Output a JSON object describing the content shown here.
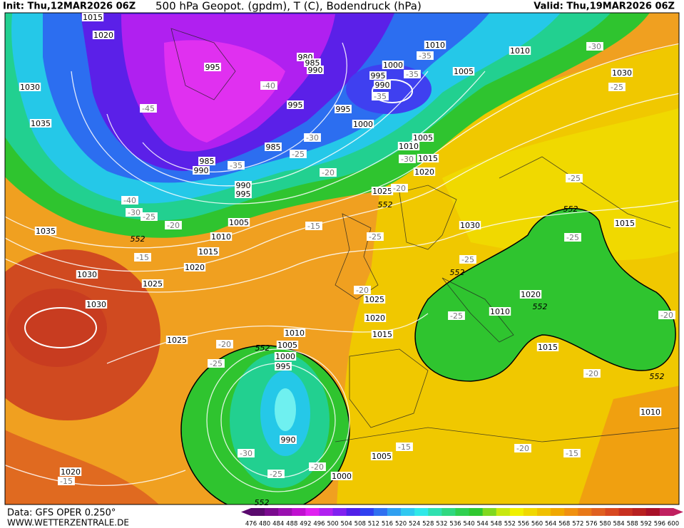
{
  "header": {
    "init": "Init: Thu,12MAR2026 06Z",
    "title": "500 hPa Geopot. (gpdm), T (C), Bodendruck (hPa)",
    "valid": "Valid: Thu,19MAR2026 06Z"
  },
  "footer": {
    "source": "Data: GFS OPER 0.250°",
    "website": "WWW.WETTERZENTRALE.DE"
  },
  "colorbar": {
    "ticks": [
      476,
      480,
      484,
      488,
      492,
      496,
      500,
      504,
      508,
      512,
      516,
      520,
      524,
      528,
      532,
      536,
      540,
      544,
      548,
      552,
      556,
      560,
      564,
      568,
      572,
      576,
      580,
      584,
      588,
      592,
      596,
      600
    ],
    "colors": [
      "#5a0a6e",
      "#7a0a8e",
      "#9a10b0",
      "#c010d0",
      "#e020f0",
      "#b020f0",
      "#8020f0",
      "#5020e8",
      "#3040f0",
      "#3070f0",
      "#30a0f0",
      "#30c8f0",
      "#30e8e8",
      "#30e0b0",
      "#30d880",
      "#30d050",
      "#30c830",
      "#80d820",
      "#c8e810",
      "#f0f000",
      "#f0d800",
      "#f0c000",
      "#f0a800",
      "#f09010",
      "#e87818",
      "#e06020",
      "#d84820",
      "#c83020",
      "#b82020",
      "#a81028",
      "#c02060"
    ]
  },
  "isobar_labels": [
    1015,
    1020,
    1030,
    1035,
    995,
    980,
    985,
    990,
    1000,
    1010,
    1010,
    1005,
    995,
    990,
    995,
    995,
    1000,
    1005,
    1010,
    1015,
    1020,
    1030,
    985,
    990,
    985,
    990,
    995,
    1025,
    1035,
    1005,
    1010,
    1015,
    1020,
    1030,
    1025,
    1030,
    1030,
    1015,
    1020,
    1010,
    1025,
    1020,
    1015,
    1010,
    1005,
    1000,
    995,
    1025,
    1015,
    990,
    1005,
    1000,
    1020,
    1010
  ],
  "temperature_labels": [
    -30,
    -35,
    -35,
    -35,
    -40,
    -45,
    -30,
    -25,
    -35,
    -30,
    -20,
    -20,
    -25,
    -40,
    -30,
    -25,
    -20,
    -15,
    -15,
    -25,
    -25,
    -25,
    -25,
    -20,
    -25,
    -20,
    -20,
    -25,
    -20,
    -30,
    -25,
    -20,
    -15,
    -20,
    -15,
    -15
  ],
  "height_labels": [
    552,
    552,
    552,
    552,
    552,
    552,
    552,
    552
  ]
}
